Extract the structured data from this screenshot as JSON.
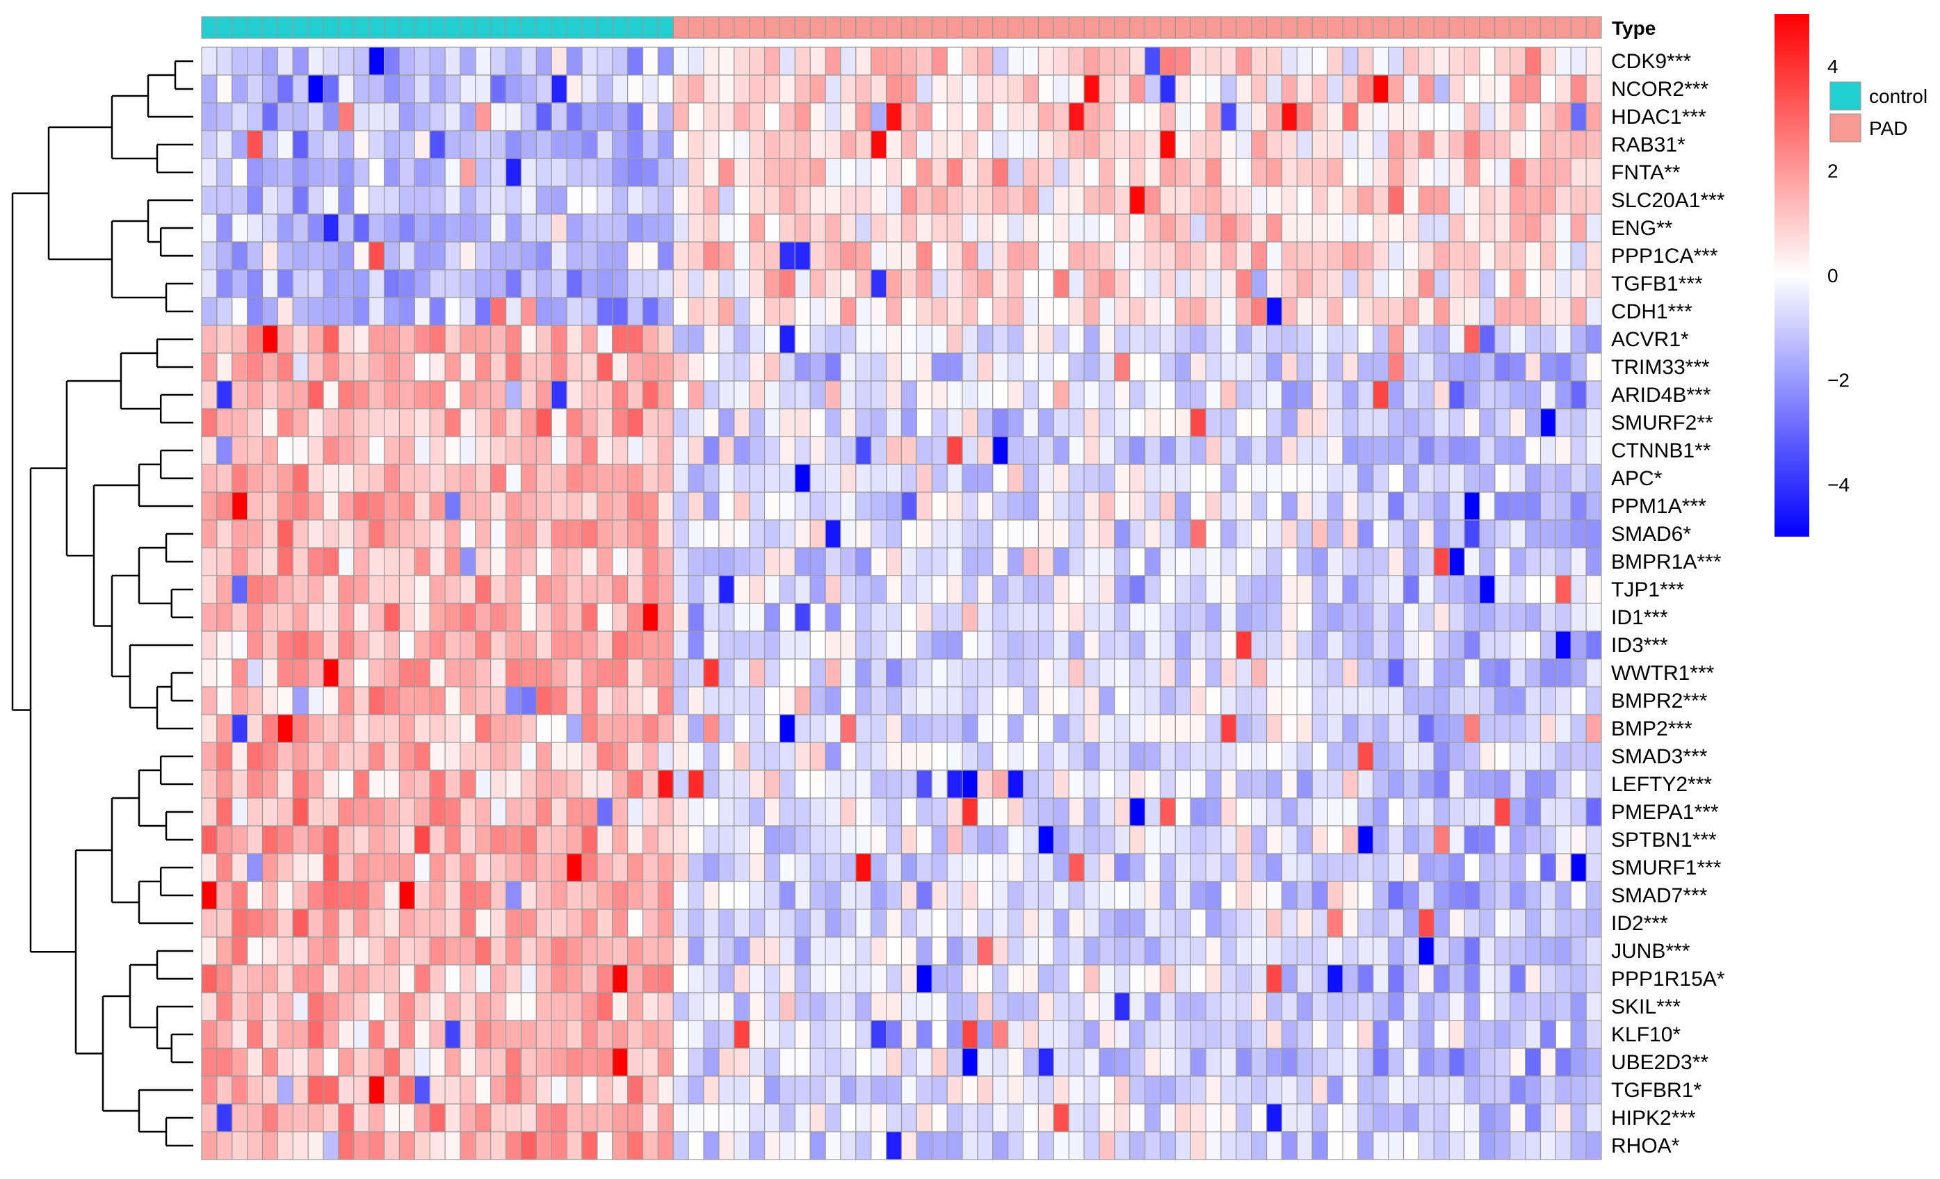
{
  "chart_data": {
    "type": "heatmap",
    "annotation": {
      "title": "Type",
      "groups": [
        {
          "name": "control",
          "color": "#22CFD0",
          "count": 31
        },
        {
          "name": "PAD",
          "color": "#F79A93",
          "count": 61
        }
      ]
    },
    "rows": [
      "CDK9***",
      "NCOR2***",
      "HDAC1***",
      "RAB31*",
      "FNTA**",
      "SLC20A1***",
      "ENG**",
      "PPP1CA***",
      "TGFB1***",
      "CDH1***",
      "ACVR1*",
      "TRIM33***",
      "ARID4B***",
      "SMURF2**",
      "CTNNB1**",
      "APC*",
      "PPM1A***",
      "SMAD6*",
      "BMPR1A***",
      "TJP1***",
      "ID1***",
      "ID3***",
      "WWTR1***",
      "BMPR2***",
      "BMP2***",
      "SMAD3***",
      "LEFTY2***",
      "PMEPA1***",
      "SPTBN1***",
      "SMURF1***",
      "SMAD7***",
      "ID2***",
      "JUNB***",
      "PPP1R15A*",
      "SKIL***",
      "KLF10*",
      "UBE2D3**",
      "TGFBR1*",
      "HIPK2***",
      "RHOA*"
    ],
    "row_pattern": [
      -1,
      -1,
      -1,
      -1,
      -1,
      -1,
      -1,
      -1,
      -1,
      -1,
      1,
      1,
      1,
      1,
      1,
      1,
      1,
      1,
      1,
      1,
      1,
      1,
      1,
      1,
      1,
      1,
      1,
      1,
      1,
      1,
      1,
      1,
      1,
      1,
      1,
      1,
      1,
      1,
      1,
      1
    ],
    "colorbar": {
      "range": [
        -5,
        5
      ],
      "ticks": [
        4,
        2,
        0,
        -2,
        -4
      ],
      "colors": [
        "#0000FF",
        "#FFFFFF",
        "#FF0000"
      ]
    },
    "dendrogram": "rows",
    "grid": true
  }
}
